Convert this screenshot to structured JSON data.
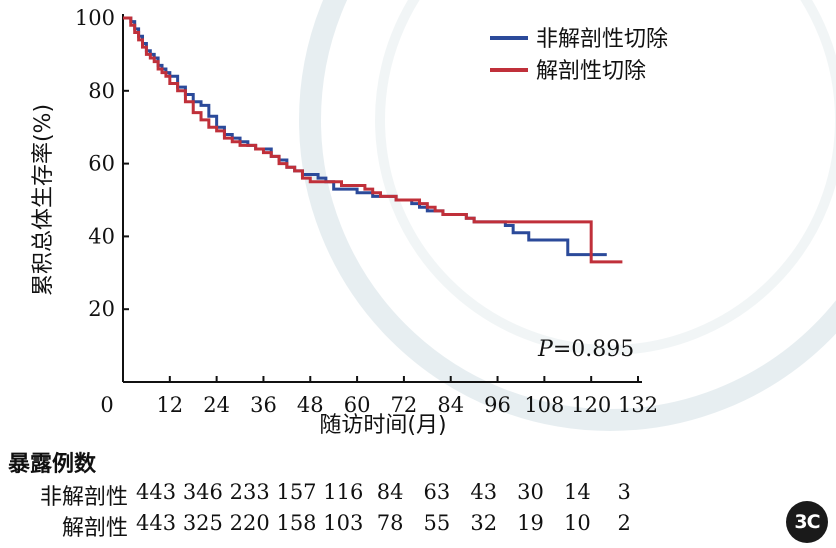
{
  "chart_data": {
    "type": "line",
    "xlabel": "随访时间(月)",
    "ylabel": "累积总体生存率(%)",
    "xlim": [
      0,
      132
    ],
    "ylim": [
      0,
      100
    ],
    "xticks": [
      0,
      12,
      24,
      36,
      48,
      60,
      72,
      84,
      96,
      108,
      120,
      132
    ],
    "yticks": [
      20,
      40,
      60,
      80,
      100
    ],
    "legend_position": "top-right",
    "annotation": {
      "italic": "P",
      "rest": "=0.895"
    },
    "series": [
      {
        "name": "非解剖性切除",
        "color": "#2b4a9a",
        "points": [
          [
            0,
            100
          ],
          [
            2,
            99
          ],
          [
            3,
            97
          ],
          [
            4,
            95
          ],
          [
            5,
            93
          ],
          [
            6,
            91
          ],
          [
            7,
            90
          ],
          [
            8,
            89
          ],
          [
            9,
            87
          ],
          [
            10,
            86
          ],
          [
            11,
            85
          ],
          [
            12,
            84
          ],
          [
            14,
            81
          ],
          [
            16,
            79
          ],
          [
            18,
            77
          ],
          [
            20,
            76
          ],
          [
            22,
            73
          ],
          [
            24,
            70
          ],
          [
            26,
            68
          ],
          [
            28,
            67
          ],
          [
            30,
            66
          ],
          [
            32,
            65
          ],
          [
            34,
            64
          ],
          [
            36,
            64
          ],
          [
            38,
            62
          ],
          [
            40,
            61
          ],
          [
            42,
            59
          ],
          [
            44,
            58
          ],
          [
            46,
            57
          ],
          [
            48,
            57
          ],
          [
            50,
            56
          ],
          [
            52,
            55
          ],
          [
            54,
            53
          ],
          [
            56,
            53
          ],
          [
            58,
            53
          ],
          [
            60,
            52
          ],
          [
            62,
            52
          ],
          [
            64,
            51
          ],
          [
            66,
            51
          ],
          [
            68,
            51
          ],
          [
            70,
            50
          ],
          [
            72,
            50
          ],
          [
            74,
            49
          ],
          [
            76,
            48
          ],
          [
            78,
            47
          ],
          [
            80,
            47
          ],
          [
            82,
            46
          ],
          [
            84,
            46
          ],
          [
            86,
            46
          ],
          [
            88,
            45
          ],
          [
            90,
            44
          ],
          [
            96,
            44
          ],
          [
            98,
            43
          ],
          [
            100,
            41
          ],
          [
            102,
            41
          ],
          [
            104,
            39
          ],
          [
            112,
            39
          ],
          [
            114,
            35
          ],
          [
            120,
            35
          ],
          [
            124,
            35
          ]
        ]
      },
      {
        "name": "解剖性切除",
        "color": "#c0303a",
        "points": [
          [
            0,
            100
          ],
          [
            2,
            98
          ],
          [
            3,
            96
          ],
          [
            4,
            94
          ],
          [
            5,
            92
          ],
          [
            6,
            90
          ],
          [
            7,
            89
          ],
          [
            8,
            88
          ],
          [
            9,
            86
          ],
          [
            10,
            85
          ],
          [
            11,
            84
          ],
          [
            12,
            82
          ],
          [
            14,
            80
          ],
          [
            16,
            77
          ],
          [
            18,
            74
          ],
          [
            20,
            72
          ],
          [
            22,
            70
          ],
          [
            24,
            69
          ],
          [
            26,
            67
          ],
          [
            28,
            66
          ],
          [
            30,
            65
          ],
          [
            32,
            65
          ],
          [
            34,
            64
          ],
          [
            36,
            63
          ],
          [
            38,
            62
          ],
          [
            40,
            60
          ],
          [
            42,
            59
          ],
          [
            44,
            58
          ],
          [
            46,
            56
          ],
          [
            48,
            55
          ],
          [
            50,
            55
          ],
          [
            52,
            55
          ],
          [
            54,
            55
          ],
          [
            56,
            54
          ],
          [
            58,
            54
          ],
          [
            60,
            54
          ],
          [
            62,
            53
          ],
          [
            64,
            52
          ],
          [
            66,
            51
          ],
          [
            68,
            51
          ],
          [
            70,
            50
          ],
          [
            72,
            50
          ],
          [
            74,
            50
          ],
          [
            76,
            49
          ],
          [
            78,
            48
          ],
          [
            80,
            47
          ],
          [
            82,
            46
          ],
          [
            84,
            46
          ],
          [
            86,
            46
          ],
          [
            88,
            45
          ],
          [
            90,
            44
          ],
          [
            96,
            44
          ],
          [
            104,
            44
          ],
          [
            112,
            44
          ],
          [
            116,
            44
          ],
          [
            119,
            44
          ],
          [
            120,
            33
          ],
          [
            128,
            33
          ]
        ]
      }
    ],
    "risk_table": {
      "title": "暴露例数",
      "rows": [
        {
          "label": "非解剖性",
          "values": [
            "443",
            "346",
            "233",
            "157",
            "116",
            "84",
            "63",
            "43",
            "30",
            "14",
            "3"
          ]
        },
        {
          "label": "解剖性",
          "values": [
            "443",
            "325",
            "220",
            "158",
            "103",
            "78",
            "55",
            "32",
            "19",
            "10",
            "2"
          ]
        }
      ]
    }
  },
  "badge": {
    "label": "3C"
  }
}
